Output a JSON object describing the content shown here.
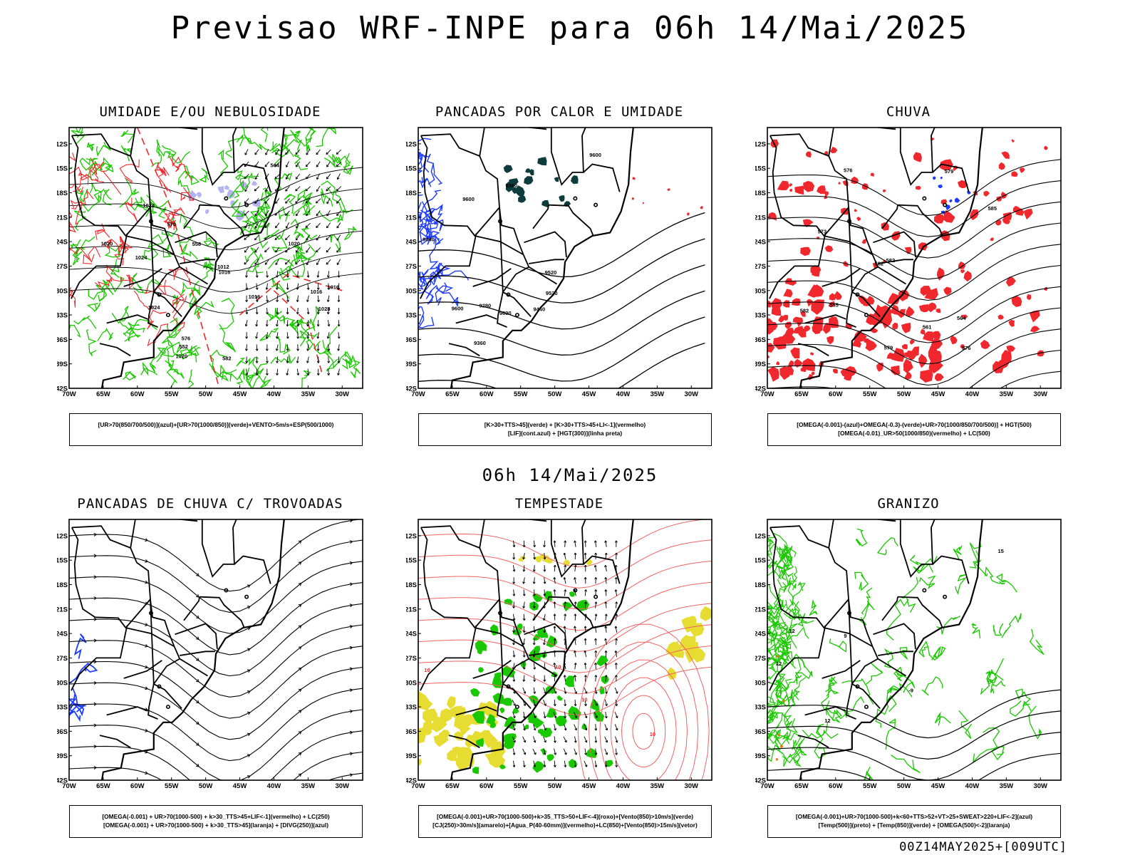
{
  "header": {
    "title": "Previsao WRF-INPE  para 06h 14/Mai/2025"
  },
  "mid_date": "06h 14/Mai/2025",
  "footer": "00Z14MAY2025+[009UTC]",
  "axes": {
    "lon_labels": [
      "70W",
      "65W",
      "60W",
      "55W",
      "50W",
      "45W",
      "40W",
      "35W",
      "30W"
    ],
    "lat_labels": [
      "12S",
      "15S",
      "18S",
      "21S",
      "24S",
      "27S",
      "30S",
      "33S",
      "36S",
      "39S",
      "42S"
    ]
  },
  "panels": [
    {
      "id": "umidade",
      "title": "UMIDADE E/OU NEBULOSIDADE",
      "legend": [
        "[UR>70(850/700/500)](azul)+[UR>70(1000/850)](verde)+VENTO>5m/s+ESP(500/1000)"
      ],
      "contour_labels": [
        "1016",
        "1016",
        "1020",
        "1024",
        "1024",
        "1012",
        "1016",
        "1016",
        "1020",
        "1028",
        "1024",
        "1020",
        "576",
        "570",
        "564",
        "582",
        "558",
        "552"
      ]
    },
    {
      "id": "pancadas_calor",
      "title": "PANCADAS POR CALOR E UMIDADE",
      "legend": [
        "[K>30+TTS>45](verde) + [K>30+TTS>45+LI<-1](vermelho)",
        "[LIF](cont.azul) + [HGT(300)](linha preta)"
      ],
      "contour_labels": [
        "9600",
        "9600",
        "9600",
        "9600",
        "9520",
        "9520",
        "9440",
        "9360",
        "9280",
        "9360",
        "9440"
      ]
    },
    {
      "id": "chuva",
      "title": "CHUVA",
      "legend": [
        "[OMEGA(-0.001)-(azul)+OMEGA(-0.3)-(verde)+UR>70(1000/850/700/500)] + HGT(500)",
        "[OMEGA(-0.01)_UR>50(1000/850)(vermelho) + LC(500)"
      ],
      "contour_labels": [
        "582",
        "585",
        "582",
        "573",
        "576",
        "579",
        "585",
        "582",
        "576",
        "579",
        "561",
        "564"
      ]
    },
    {
      "id": "trovoadas",
      "title": "PANCADAS DE CHUVA C/ TROVOADAS",
      "legend": [
        "[OMEGA(-0.001) + UR>70(1000-500) + k>30_TTS>45+LIF<-1](vermelho) + LC(250)",
        "[OMEGA(-0.001) + UR>70(1000-500) + k>30_TTS>45](laranja) + [DIVG(250)](azul)"
      ],
      "contour_labels": []
    },
    {
      "id": "tempestade",
      "title": "TEMPESTADE",
      "legend": [
        "[OMEGA(-0.001)+UR>70(1000-500)+k>35_TTS>50+LIF<-4](roxo)+[Vento(850)>10m/s](verde)",
        "[CJ(250)>30m/s](amarelo)+[Agua_P(40-60mm)](vermelho)+LC(850)+[Vento(850)>15m/s](vetor)"
      ],
      "contour_labels": [
        "10",
        "10",
        "10",
        "10"
      ]
    },
    {
      "id": "granizo",
      "title": "GRANIZO",
      "legend": [
        "[OMEGA(-0.001)+UR>70(1000-500)+k<60+TTS>52+VT>25+SWEAT>220+LIF<-2](azul)",
        "[Temp(500)](preto) + [Temp(850)](verde) + [OMEGA(500)<-2](laranja)"
      ],
      "contour_labels": [
        "12",
        "12",
        "15",
        "12",
        "-9",
        "9"
      ]
    }
  ],
  "colors": {
    "green": "#19c800",
    "red": "#f0282d",
    "blue": "#1e3cff",
    "darkgreen": "#0e3c3c",
    "yellow": "#e6dc32",
    "orange": "#f07800",
    "lightred": "#f06464"
  },
  "icons": [
    "streamline-arrow-icon",
    "wind-vector-icon"
  ]
}
